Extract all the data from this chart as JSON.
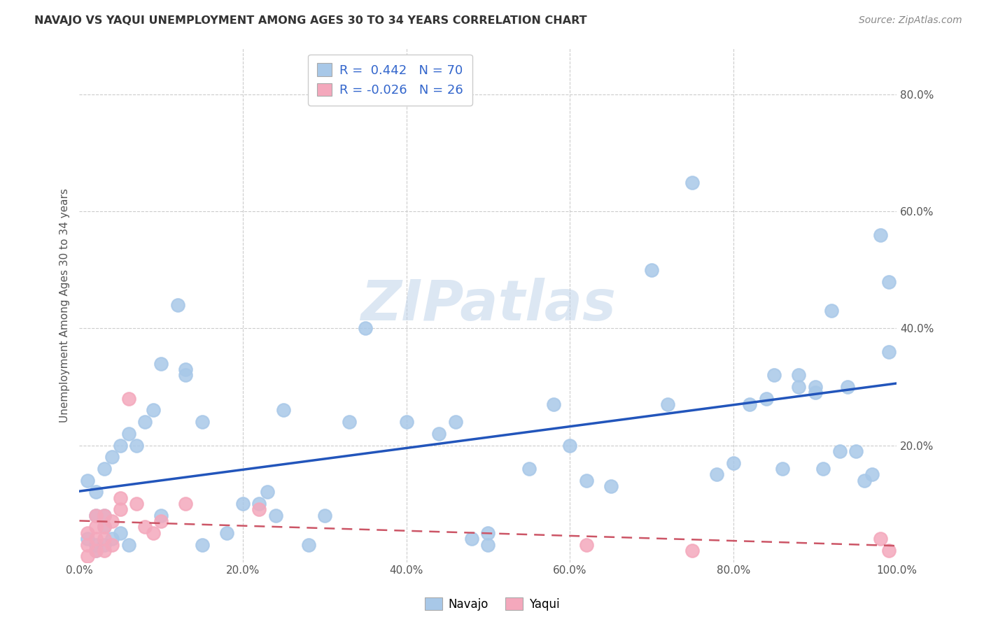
{
  "title": "NAVAJO VS YAQUI UNEMPLOYMENT AMONG AGES 30 TO 34 YEARS CORRELATION CHART",
  "source": "Source: ZipAtlas.com",
  "ylabel": "Unemployment Among Ages 30 to 34 years",
  "navajo_R": 0.442,
  "navajo_N": 70,
  "yaqui_R": -0.026,
  "yaqui_N": 26,
  "navajo_color": "#a8c8e8",
  "yaqui_color": "#f4a8bc",
  "navajo_line_color": "#2255bb",
  "yaqui_line_color": "#cc5566",
  "background_color": "#ffffff",
  "grid_color": "#cccccc",
  "watermark": "ZIPatlas",
  "text_color_blue": "#3366cc",
  "axis_text_color": "#555555",
  "title_color": "#333333",
  "source_color": "#888888",
  "navajo_x": [
    0.01,
    0.01,
    0.02,
    0.02,
    0.02,
    0.02,
    0.03,
    0.03,
    0.03,
    0.03,
    0.04,
    0.04,
    0.05,
    0.05,
    0.06,
    0.06,
    0.07,
    0.08,
    0.09,
    0.1,
    0.1,
    0.12,
    0.13,
    0.13,
    0.15,
    0.15,
    0.18,
    0.2,
    0.22,
    0.23,
    0.24,
    0.25,
    0.28,
    0.3,
    0.33,
    0.35,
    0.4,
    0.44,
    0.46,
    0.48,
    0.5,
    0.5,
    0.55,
    0.58,
    0.6,
    0.62,
    0.65,
    0.7,
    0.72,
    0.75,
    0.78,
    0.8,
    0.82,
    0.84,
    0.85,
    0.86,
    0.88,
    0.88,
    0.9,
    0.9,
    0.91,
    0.92,
    0.93,
    0.94,
    0.95,
    0.96,
    0.97,
    0.98,
    0.99,
    0.99
  ],
  "navajo_y": [
    0.14,
    0.04,
    0.02,
    0.08,
    0.12,
    0.03,
    0.06,
    0.16,
    0.08,
    0.03,
    0.18,
    0.04,
    0.2,
    0.05,
    0.22,
    0.03,
    0.2,
    0.24,
    0.26,
    0.08,
    0.34,
    0.44,
    0.33,
    0.32,
    0.24,
    0.03,
    0.05,
    0.1,
    0.1,
    0.12,
    0.08,
    0.26,
    0.03,
    0.08,
    0.24,
    0.4,
    0.24,
    0.22,
    0.24,
    0.04,
    0.05,
    0.03,
    0.16,
    0.27,
    0.2,
    0.14,
    0.13,
    0.5,
    0.27,
    0.65,
    0.15,
    0.17,
    0.27,
    0.28,
    0.32,
    0.16,
    0.3,
    0.32,
    0.3,
    0.29,
    0.16,
    0.43,
    0.19,
    0.3,
    0.19,
    0.14,
    0.15,
    0.56,
    0.36,
    0.48
  ],
  "yaqui_x": [
    0.01,
    0.01,
    0.01,
    0.02,
    0.02,
    0.02,
    0.02,
    0.03,
    0.03,
    0.03,
    0.03,
    0.04,
    0.04,
    0.05,
    0.05,
    0.06,
    0.07,
    0.08,
    0.09,
    0.1,
    0.13,
    0.22,
    0.62,
    0.75,
    0.98,
    0.99
  ],
  "yaqui_y": [
    0.01,
    0.03,
    0.05,
    0.02,
    0.04,
    0.06,
    0.08,
    0.02,
    0.04,
    0.06,
    0.08,
    0.03,
    0.07,
    0.09,
    0.11,
    0.28,
    0.1,
    0.06,
    0.05,
    0.07,
    0.1,
    0.09,
    0.03,
    0.02,
    0.04,
    0.02
  ],
  "xlim": [
    0,
    1.0
  ],
  "ylim": [
    0,
    0.88
  ],
  "xticks": [
    0.0,
    0.2,
    0.4,
    0.6,
    0.8,
    1.0
  ],
  "xticklabels": [
    "0.0%",
    "20.0%",
    "40.0%",
    "60.0%",
    "80.0%",
    "100.0%"
  ],
  "yticks": [
    0.0,
    0.2,
    0.4,
    0.6,
    0.8
  ],
  "yticklabels_right": [
    "",
    "20.0%",
    "40.0%",
    "60.0%",
    "80.0%"
  ]
}
